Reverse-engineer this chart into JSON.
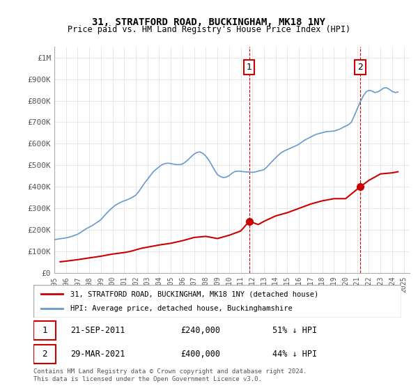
{
  "title": "31, STRATFORD ROAD, BUCKINGHAM, MK18 1NY",
  "subtitle": "Price paid vs. HM Land Registry's House Price Index (HPI)",
  "hpi_color": "#6699cc",
  "price_color": "#cc0000",
  "dashed_line_color": "#cc0000",
  "background_color": "#ffffff",
  "grid_color": "#dddddd",
  "ylim": [
    0,
    1050000
  ],
  "yticks": [
    0,
    100000,
    200000,
    300000,
    400000,
    500000,
    600000,
    700000,
    800000,
    900000,
    1000000
  ],
  "ytick_labels": [
    "£0",
    "£100K",
    "£200K",
    "£300K",
    "£400K",
    "£500K",
    "£600K",
    "£700K",
    "£800K",
    "£900K",
    "£1M"
  ],
  "xlim_start": 1995.0,
  "xlim_end": 2025.5,
  "xticks": [
    1995,
    1996,
    1997,
    1998,
    1999,
    2000,
    2001,
    2002,
    2003,
    2004,
    2005,
    2006,
    2007,
    2008,
    2009,
    2010,
    2011,
    2012,
    2013,
    2014,
    2015,
    2016,
    2017,
    2018,
    2019,
    2020,
    2021,
    2022,
    2023,
    2024,
    2025
  ],
  "sale1_x": 2011.73,
  "sale1_y": 240000,
  "sale1_label": "1",
  "sale1_date": "21-SEP-2011",
  "sale1_price": "£240,000",
  "sale1_hpi": "51% ↓ HPI",
  "sale2_x": 2021.25,
  "sale2_y": 400000,
  "sale2_label": "2",
  "sale2_date": "29-MAR-2021",
  "sale2_price": "£400,000",
  "sale2_hpi": "44% ↓ HPI",
  "legend_line1": "31, STRATFORD ROAD, BUCKINGHAM, MK18 1NY (detached house)",
  "legend_line2": "HPI: Average price, detached house, Buckinghamshire",
  "footer": "Contains HM Land Registry data © Crown copyright and database right 2024.\nThis data is licensed under the Open Government Licence v3.0.",
  "hpi_data_x": [
    1995.0,
    1995.25,
    1995.5,
    1995.75,
    1996.0,
    1996.25,
    1996.5,
    1996.75,
    1997.0,
    1997.25,
    1997.5,
    1997.75,
    1998.0,
    1998.25,
    1998.5,
    1998.75,
    1999.0,
    1999.25,
    1999.5,
    1999.75,
    2000.0,
    2000.25,
    2000.5,
    2000.75,
    2001.0,
    2001.25,
    2001.5,
    2001.75,
    2002.0,
    2002.25,
    2002.5,
    2002.75,
    2003.0,
    2003.25,
    2003.5,
    2003.75,
    2004.0,
    2004.25,
    2004.5,
    2004.75,
    2005.0,
    2005.25,
    2005.5,
    2005.75,
    2006.0,
    2006.25,
    2006.5,
    2006.75,
    2007.0,
    2007.25,
    2007.5,
    2007.75,
    2008.0,
    2008.25,
    2008.5,
    2008.75,
    2009.0,
    2009.25,
    2009.5,
    2009.75,
    2010.0,
    2010.25,
    2010.5,
    2010.75,
    2011.0,
    2011.25,
    2011.5,
    2011.75,
    2012.0,
    2012.25,
    2012.5,
    2012.75,
    2013.0,
    2013.25,
    2013.5,
    2013.75,
    2014.0,
    2014.25,
    2014.5,
    2014.75,
    2015.0,
    2015.25,
    2015.5,
    2015.75,
    2016.0,
    2016.25,
    2016.5,
    2016.75,
    2017.0,
    2017.25,
    2017.5,
    2017.75,
    2018.0,
    2018.25,
    2018.5,
    2018.75,
    2019.0,
    2019.25,
    2019.5,
    2019.75,
    2020.0,
    2020.25,
    2020.5,
    2020.75,
    2021.0,
    2021.25,
    2021.5,
    2021.75,
    2022.0,
    2022.25,
    2022.5,
    2022.75,
    2023.0,
    2023.25,
    2023.5,
    2023.75,
    2024.0,
    2024.25,
    2024.5
  ],
  "hpi_data_y": [
    155000,
    157000,
    159000,
    161000,
    163000,
    166000,
    170000,
    175000,
    180000,
    188000,
    197000,
    206000,
    213000,
    220000,
    229000,
    238000,
    248000,
    263000,
    278000,
    292000,
    304000,
    315000,
    323000,
    330000,
    335000,
    340000,
    346000,
    353000,
    362000,
    378000,
    398000,
    418000,
    435000,
    453000,
    470000,
    482000,
    493000,
    503000,
    508000,
    510000,
    508000,
    505000,
    503000,
    503000,
    506000,
    515000,
    527000,
    540000,
    552000,
    560000,
    562000,
    555000,
    543000,
    525000,
    502000,
    478000,
    457000,
    448000,
    443000,
    445000,
    452000,
    463000,
    471000,
    473000,
    472000,
    470000,
    469000,
    469000,
    467000,
    469000,
    473000,
    476000,
    480000,
    492000,
    507000,
    521000,
    535000,
    548000,
    559000,
    567000,
    573000,
    579000,
    585000,
    591000,
    598000,
    608000,
    617000,
    624000,
    631000,
    638000,
    644000,
    648000,
    651000,
    655000,
    657000,
    658000,
    659000,
    663000,
    668000,
    675000,
    682000,
    688000,
    700000,
    730000,
    762000,
    793000,
    820000,
    840000,
    848000,
    845000,
    838000,
    840000,
    848000,
    858000,
    860000,
    853000,
    843000,
    838000,
    840000
  ],
  "price_data_x": [
    1995.5,
    1996.0,
    1997.0,
    1998.0,
    1999.0,
    2000.0,
    2001.0,
    2001.5,
    2002.5,
    2003.0,
    2003.5,
    2004.0,
    2005.0,
    2006.0,
    2007.0,
    2008.0,
    2009.0,
    2010.0,
    2011.0,
    2011.73,
    2012.5,
    2013.0,
    2014.0,
    2015.0,
    2016.0,
    2017.0,
    2018.0,
    2019.0,
    2020.0,
    2021.25,
    2022.0,
    2022.5,
    2023.0,
    2024.0,
    2024.5
  ],
  "price_data_y": [
    52000,
    55000,
    62000,
    70000,
    78000,
    88000,
    95000,
    100000,
    115000,
    120000,
    125000,
    130000,
    138000,
    150000,
    165000,
    170000,
    160000,
    175000,
    195000,
    240000,
    225000,
    240000,
    265000,
    280000,
    300000,
    320000,
    335000,
    345000,
    345000,
    400000,
    430000,
    445000,
    460000,
    465000,
    470000
  ]
}
